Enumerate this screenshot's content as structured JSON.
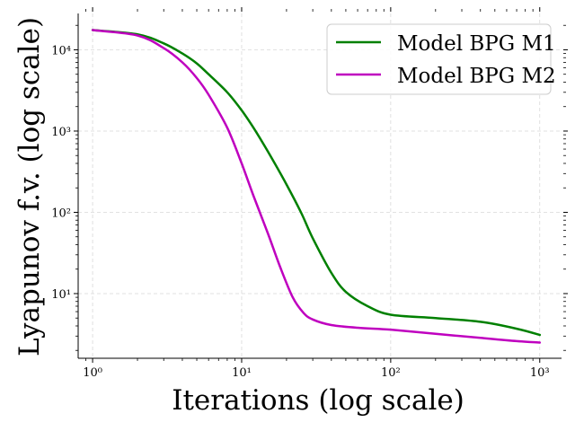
{
  "chart_data": {
    "type": "line",
    "title": "",
    "xlabel": "Iterations (log scale)",
    "ylabel": "Lyapunov f.v. (log scale)",
    "xscale": "log",
    "yscale": "log",
    "xlim": [
      0.8,
      1400
    ],
    "ylim": [
      1.6,
      28000
    ],
    "grid": true,
    "legend_position": "top-right",
    "x_ticks": [
      {
        "value": 1,
        "label": "10⁰"
      },
      {
        "value": 10,
        "label": "10¹"
      },
      {
        "value": 100,
        "label": "10²"
      },
      {
        "value": 1000,
        "label": "10³"
      }
    ],
    "y_ticks": [
      {
        "value": 10,
        "label": "10¹"
      },
      {
        "value": 100,
        "label": "10²"
      },
      {
        "value": 1000,
        "label": "10³"
      },
      {
        "value": 10000,
        "label": "10⁴"
      }
    ],
    "series": [
      {
        "name": "Model BPG M1",
        "color": "#008000",
        "points": [
          [
            1,
            17500
          ],
          [
            2,
            15500
          ],
          [
            3,
            12000
          ],
          [
            4,
            9000
          ],
          [
            5,
            6800
          ],
          [
            6,
            5000
          ],
          [
            8,
            3000
          ],
          [
            10,
            1800
          ],
          [
            12,
            1100
          ],
          [
            15,
            560
          ],
          [
            20,
            220
          ],
          [
            25,
            100
          ],
          [
            30,
            48
          ],
          [
            40,
            18
          ],
          [
            50,
            10.5
          ],
          [
            70,
            7
          ],
          [
            100,
            5.5
          ],
          [
            200,
            5
          ],
          [
            400,
            4.5
          ],
          [
            700,
            3.7
          ],
          [
            1000,
            3.1
          ]
        ]
      },
      {
        "name": "Model BPG M2",
        "color": "#bf00bf",
        "points": [
          [
            1,
            17500
          ],
          [
            2,
            15000
          ],
          [
            3,
            10500
          ],
          [
            4,
            7000
          ],
          [
            5,
            4500
          ],
          [
            6,
            2800
          ],
          [
            8,
            1100
          ],
          [
            10,
            400
          ],
          [
            12,
            160
          ],
          [
            15,
            55
          ],
          [
            18,
            22
          ],
          [
            22,
            9
          ],
          [
            26,
            5.8
          ],
          [
            30,
            4.8
          ],
          [
            40,
            4.1
          ],
          [
            60,
            3.8
          ],
          [
            100,
            3.6
          ],
          [
            200,
            3.2
          ],
          [
            400,
            2.85
          ],
          [
            700,
            2.6
          ],
          [
            1000,
            2.5
          ]
        ]
      }
    ]
  }
}
